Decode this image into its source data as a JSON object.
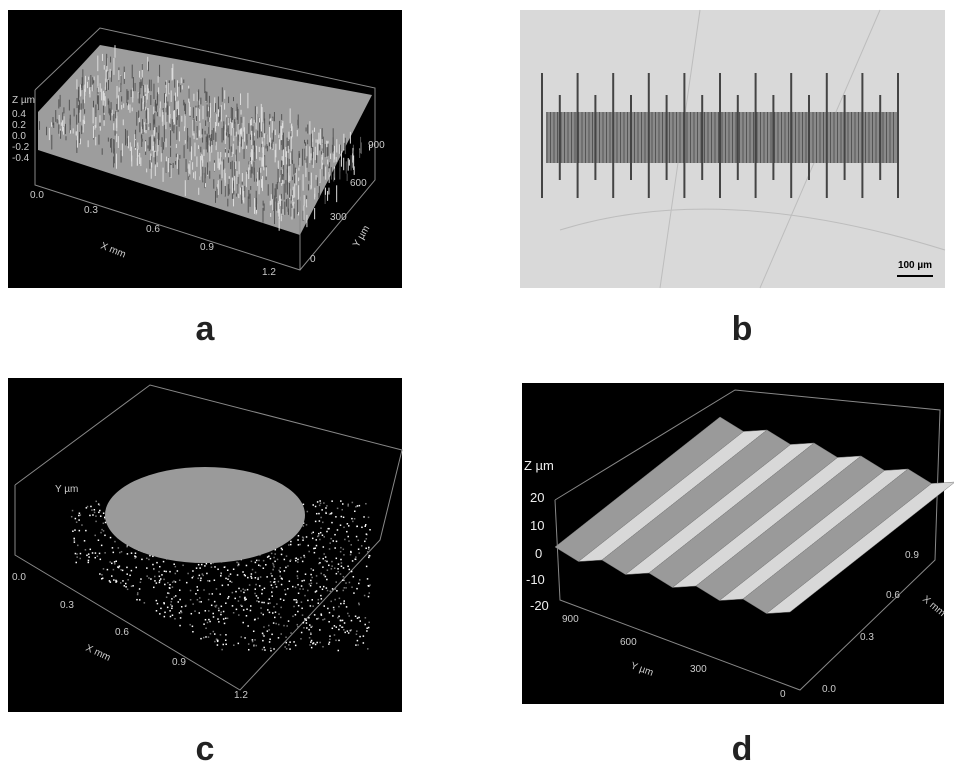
{
  "panels": [
    {
      "label": "a",
      "z_axis": {
        "title": "Z µm",
        "ticks": [
          "0.4",
          "0.2",
          "0.0",
          "-0.2",
          "-0.4"
        ]
      },
      "x_axis": {
        "title": "X mm",
        "ticks": [
          "0.0",
          "0.3",
          "0.6",
          "0.9",
          "1.2"
        ]
      },
      "y_axis": {
        "title": "Y µm",
        "ticks": [
          "900",
          "600",
          "300",
          "0"
        ]
      }
    },
    {
      "label": "b",
      "scale_bar": "100 µm"
    },
    {
      "label": "c",
      "x_axis": {
        "title": "X mm",
        "ticks": [
          "0.0",
          "0.3",
          "0.6",
          "0.9",
          "1.2"
        ]
      },
      "y_axis": {
        "title": "Y µm"
      }
    },
    {
      "label": "d",
      "z_axis": {
        "title": "Z µm",
        "ticks": [
          "20",
          "10",
          "0",
          "-10",
          "-20"
        ]
      },
      "y_axis": {
        "title": "Y µm",
        "ticks": [
          "900",
          "600",
          "300",
          "0"
        ]
      },
      "x_axis": {
        "title": "X mm",
        "ticks": [
          "0.0",
          "0.3",
          "0.6",
          "0.9"
        ]
      }
    }
  ]
}
